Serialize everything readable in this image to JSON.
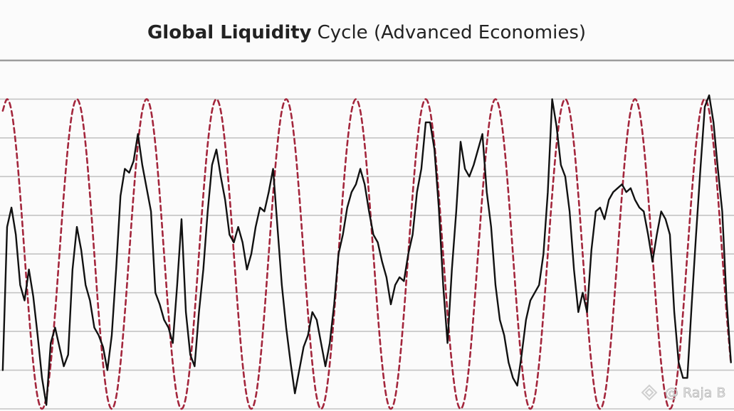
{
  "chart_data": {
    "type": "line",
    "title": {
      "bold": "Global Liquidity",
      "rest": "Cycle (Advanced Economies)"
    },
    "watermark": "@ Raja B",
    "x": [
      -1,
      0,
      1,
      2,
      3,
      4,
      5,
      6,
      7,
      8,
      9,
      10,
      11,
      12,
      13,
      14,
      15,
      16,
      17,
      18,
      19,
      20,
      21,
      22,
      23,
      24,
      25,
      26,
      27,
      28,
      29,
      30,
      31,
      32,
      33,
      34,
      35,
      36,
      37,
      38,
      39,
      40,
      41,
      42,
      43,
      44,
      45,
      46,
      47,
      48,
      49,
      50,
      51,
      52,
      53,
      54,
      55,
      56,
      57,
      58,
      59,
      60,
      61,
      62,
      63,
      64,
      65,
      66,
      67,
      68,
      69,
      70,
      71,
      72,
      73,
      74,
      75,
      76,
      77,
      78,
      79,
      80,
      81,
      82,
      83,
      84,
      85,
      86,
      87,
      88,
      89,
      90,
      91,
      92,
      93,
      94,
      95,
      96,
      97,
      98,
      99,
      100,
      101,
      102,
      103,
      104,
      105,
      106,
      107,
      108,
      109,
      110,
      111,
      112,
      113,
      114,
      115,
      116,
      117,
      118,
      119,
      120,
      121,
      122,
      123,
      124,
      125,
      126,
      127,
      128,
      129,
      130,
      131,
      132,
      133,
      134,
      135,
      136,
      137,
      138,
      139,
      140,
      141,
      142,
      143,
      144,
      145,
      146,
      147,
      148,
      149,
      150,
      151,
      152,
      153,
      154,
      155,
      156,
      157,
      158,
      159,
      160,
      161,
      162,
      163,
      164,
      165,
      166
    ],
    "series": [
      {
        "color": "#111111",
        "dashed": false,
        "values": [
          1.0,
          4.7,
          5.2,
          4.5,
          3.2,
          2.8,
          3.6,
          2.9,
          1.9,
          0.8,
          0.1,
          1.7,
          2.1,
          1.6,
          1.1,
          1.4,
          3.6,
          4.7,
          4.1,
          3.2,
          2.8,
          2.1,
          1.9,
          1.6,
          1.0,
          1.9,
          3.6,
          5.5,
          6.2,
          6.1,
          6.4,
          7.1,
          6.3,
          5.7,
          5.1,
          3.0,
          2.7,
          2.3,
          2.1,
          1.7,
          3.2,
          4.9,
          2.5,
          1.4,
          1.1,
          2.5,
          3.6,
          5.1,
          6.3,
          6.7,
          6.0,
          5.4,
          4.5,
          4.3,
          4.7,
          4.3,
          3.6,
          4.0,
          4.7,
          5.2,
          5.1,
          5.6,
          6.2,
          4.7,
          3.2,
          2.1,
          1.2,
          0.4,
          1.0,
          1.6,
          1.9,
          2.5,
          2.3,
          1.7,
          1.1,
          1.7,
          2.7,
          4.0,
          4.5,
          5.2,
          5.6,
          5.8,
          6.2,
          5.8,
          5.1,
          4.5,
          4.3,
          3.8,
          3.4,
          2.7,
          3.2,
          3.4,
          3.3,
          4.0,
          4.5,
          5.6,
          6.2,
          7.4,
          7.4,
          6.7,
          5.2,
          3.2,
          1.7,
          3.6,
          5.1,
          6.9,
          6.2,
          6.0,
          6.3,
          6.7,
          7.1,
          5.6,
          4.7,
          3.2,
          2.3,
          1.9,
          1.2,
          0.8,
          0.6,
          1.4,
          2.3,
          2.8,
          3.0,
          3.2,
          4.0,
          5.6,
          8.0,
          7.3,
          6.3,
          6.0,
          5.1,
          3.6,
          2.5,
          3.0,
          2.5,
          4.1,
          5.1,
          5.2,
          4.9,
          5.4,
          5.6,
          5.7,
          5.8,
          5.6,
          5.7,
          5.4,
          5.2,
          5.1,
          4.5,
          3.8,
          4.5,
          5.1,
          4.9,
          4.5,
          2.5,
          1.2,
          0.8,
          0.8,
          2.7,
          4.5,
          6.2,
          7.8,
          8.1,
          7.4,
          6.2,
          5.1,
          2.8,
          1.2
        ]
      },
      {
        "color": "#a3263c",
        "dashed": true,
        "values": [
          7.7,
          8,
          7.7,
          6.83,
          5.53,
          4,
          2.47,
          1.17,
          0.3,
          0,
          0.3,
          1.17,
          2.47,
          4,
          5.53,
          6.83,
          7.7,
          8,
          7.7,
          6.83,
          5.53,
          4,
          2.47,
          1.17,
          0.3,
          0,
          0.3,
          1.17,
          2.47,
          4,
          5.53,
          6.83,
          7.7,
          8,
          7.7,
          6.83,
          5.53,
          4,
          2.47,
          1.17,
          0.3,
          0,
          0.3,
          1.17,
          2.47,
          4,
          5.53,
          6.83,
          7.7,
          8,
          7.7,
          6.83,
          5.53,
          4,
          2.47,
          1.17,
          0.3,
          0,
          0.3,
          1.17,
          2.47,
          4,
          5.53,
          6.83,
          7.7,
          8,
          7.7,
          6.83,
          5.53,
          4,
          2.47,
          1.17,
          0.3,
          0,
          0.3,
          1.17,
          2.47,
          4,
          5.53,
          6.83,
          7.7,
          8,
          7.7,
          6.83,
          5.53,
          4,
          2.47,
          1.17,
          0.3,
          0,
          0.3,
          1.17,
          2.47,
          4,
          5.53,
          6.83,
          7.7,
          8,
          7.7,
          6.83,
          5.53,
          4,
          2.47,
          1.17,
          0.3,
          0,
          0.3,
          1.17,
          2.47,
          4,
          5.53,
          6.83,
          7.7,
          8,
          7.7,
          6.83,
          5.53,
          4,
          2.47,
          1.17,
          0.3,
          0,
          0.3,
          1.17,
          2.47,
          4,
          5.53,
          6.83,
          7.7,
          8,
          7.7,
          6.83,
          5.53,
          4,
          2.47,
          1.17,
          0.3,
          0,
          0.3,
          1.17,
          2.47,
          4,
          5.53,
          6.83,
          7.7,
          8,
          7.7,
          6.83,
          5.53,
          4,
          2.47,
          1.17,
          0.3,
          0,
          0.3,
          1.17,
          2.47,
          4,
          5.53,
          6.83,
          7.7,
          8,
          7.7,
          6.83,
          5.53,
          4,
          2.47,
          1.17
        ]
      }
    ],
    "xlim": [
      -1.63,
      166.7
    ],
    "ylim": [
      0,
      9
    ],
    "yticks": [
      0,
      1,
      2,
      3,
      4,
      5,
      6,
      7,
      8,
      9
    ],
    "grid": true
  }
}
